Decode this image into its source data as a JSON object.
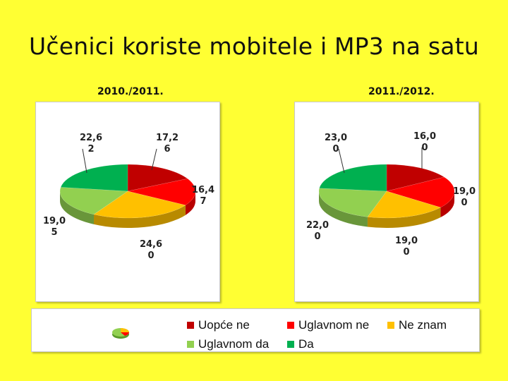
{
  "title": "Učenici koriste mobitele i MP3 na satu",
  "colors": {
    "background": "#ffff33",
    "uopce_ne": "#c00000",
    "uglavnom_ne": "#ff0000",
    "ne_znam": "#ffc000",
    "uglavnom_da": "#92d050",
    "da": "#00b050"
  },
  "legend": {
    "items": [
      {
        "label": "Uopće ne",
        "color": "#c00000"
      },
      {
        "label": "Uglavnom ne",
        "color": "#ff0000"
      },
      {
        "label": "Ne znam",
        "color": "#ffc000"
      },
      {
        "label": "Uglavnom da",
        "color": "#92d050"
      },
      {
        "label": "Da",
        "color": "#00b050"
      }
    ]
  },
  "chart_data": [
    {
      "type": "pie",
      "title": "2010./2011.",
      "categories": [
        "Uopće ne",
        "Uglavnom ne",
        "Ne znam",
        "Uglavnom da",
        "Da"
      ],
      "values": [
        17.26,
        16.47,
        24.6,
        19.05,
        22.62
      ],
      "value_labels": [
        [
          "17,2",
          "6"
        ],
        [
          "16,4",
          "7"
        ],
        [
          "24,6",
          "0"
        ],
        [
          "19,0",
          "5"
        ],
        [
          "22,6",
          "2"
        ]
      ]
    },
    {
      "type": "pie",
      "title": "2011./2012.",
      "categories": [
        "Uopće ne",
        "Uglavnom ne",
        "Ne znam",
        "Uglavnom da",
        "Da"
      ],
      "values": [
        16.0,
        19.0,
        19.0,
        22.0,
        23.0
      ],
      "value_labels": [
        [
          "16,0",
          "0"
        ],
        [
          "19,0",
          "0"
        ],
        [
          "19,0",
          "0"
        ],
        [
          "22,0",
          "0"
        ],
        [
          "23,0",
          "0"
        ]
      ]
    }
  ]
}
